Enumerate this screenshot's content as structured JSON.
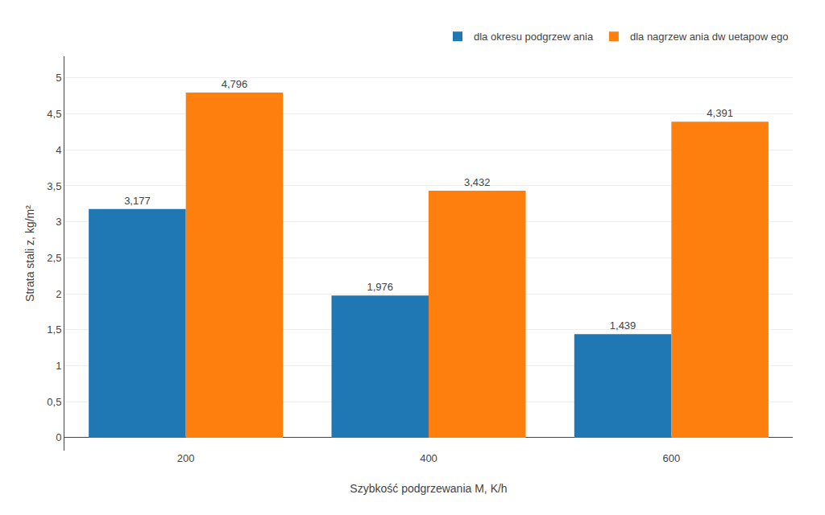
{
  "chart_data": {
    "type": "bar",
    "categories": [
      "200",
      "400",
      "600"
    ],
    "series": [
      {
        "name": "dla okresu podgrzew ania",
        "values": [
          3.177,
          1.976,
          1.439
        ],
        "value_labels": [
          "3,177",
          "1,976",
          "1,439"
        ]
      },
      {
        "name": "dla nagrzew ania dw uetapow ego",
        "values": [
          4.796,
          3.432,
          4.391
        ],
        "value_labels": [
          "4,796",
          "3,432",
          "4,391"
        ]
      }
    ],
    "xlabel": "Szybkość podgrzewania M, K/h",
    "ylabel": "Strata stali z, kg/m²",
    "ylim": [
      -0.18,
      5.3
    ],
    "yticks": [
      0,
      {
        "value": 0.5,
        "label": "0,5"
      },
      1,
      {
        "value": 1.5,
        "label": "1,5"
      },
      2,
      {
        "value": 2.5,
        "label": "2,5"
      },
      3,
      {
        "value": 3.5,
        "label": "3,5"
      },
      4,
      {
        "value": 4.5,
        "label": "4,5"
      },
      5
    ],
    "grid": true,
    "legend": "upper right",
    "data_labels": true
  }
}
